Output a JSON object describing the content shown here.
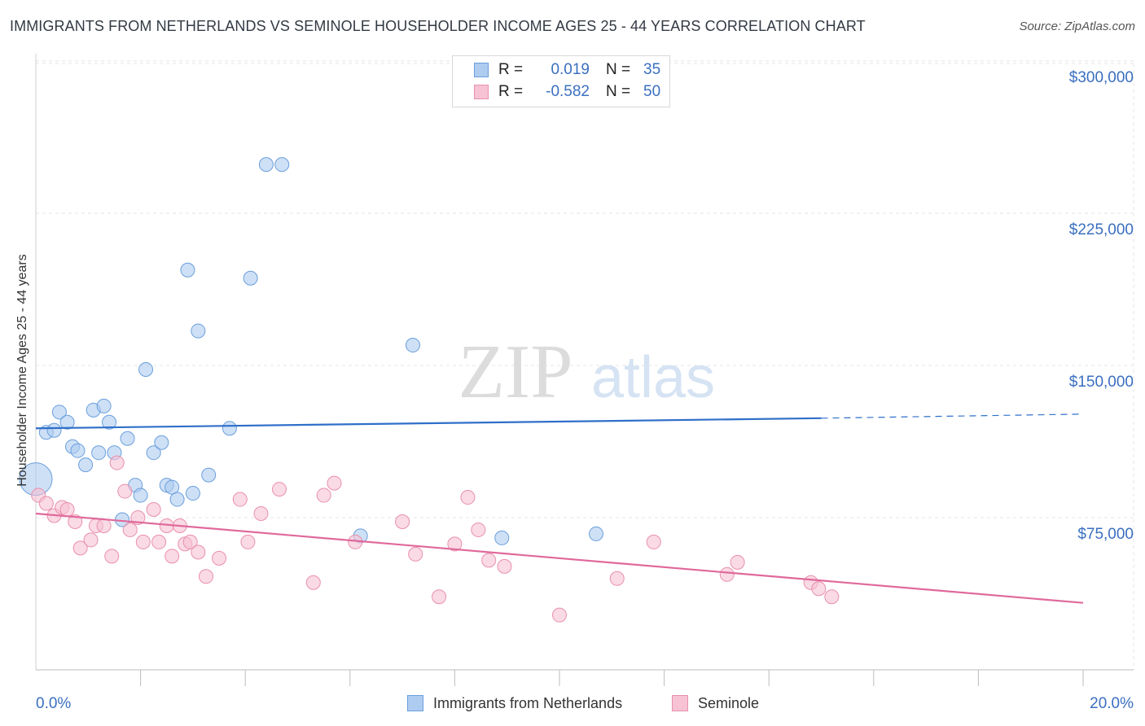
{
  "title": "IMMIGRANTS FROM NETHERLANDS VS SEMINOLE HOUSEHOLDER INCOME AGES 25 - 44 YEARS CORRELATION CHART",
  "source": "Source: ZipAtlas.com",
  "watermark": {
    "zip": "ZIP",
    "atlas": "atlas"
  },
  "legend": {
    "r_label": "R =",
    "n_label": "N =",
    "series1": {
      "r": "0.019",
      "n": "35"
    },
    "series2": {
      "r": "-0.582",
      "n": "50"
    }
  },
  "chart_data": {
    "type": "scatter",
    "title": "IMMIGRANTS FROM NETHERLANDS VS SEMINOLE HOUSEHOLDER INCOME AGES 25 - 44 YEARS CORRELATION CHART",
    "xlabel": "",
    "ylabel": "Householder Income Ages 25 - 44 years",
    "xlim": [
      0,
      20
    ],
    "ylim": [
      0,
      310000
    ],
    "x_tick_labels": [
      "0.0%",
      "20.0%"
    ],
    "y_ticks": [
      75000,
      150000,
      225000,
      300000
    ],
    "y_tick_labels": [
      "$75,000",
      "$150,000",
      "$225,000",
      "$300,000"
    ],
    "grid": true,
    "colors": {
      "series1_fill": "#aecbf0",
      "series1_stroke": "#6a9fdc",
      "series1_line": "#2f6fc9",
      "series2_fill": "#f7c2d3",
      "series2_stroke": "#e890ad",
      "series2_line": "#e0699b",
      "tick_label": "#3a6fc0",
      "grid": "#e4e4e4"
    },
    "series": [
      {
        "name": "Immigrants from Netherlands",
        "r": 0.019,
        "n": 35,
        "trend": {
          "x0": 0,
          "y0": 119000,
          "x1": 15,
          "y1": 124000,
          "dash_to_x": 20,
          "dash_to_y": 126000
        },
        "points": [
          {
            "x": 0.0,
            "y": 94000,
            "big": true
          },
          {
            "x": 0.2,
            "y": 117000
          },
          {
            "x": 0.35,
            "y": 118000
          },
          {
            "x": 0.45,
            "y": 127000
          },
          {
            "x": 0.6,
            "y": 122000
          },
          {
            "x": 0.7,
            "y": 110000
          },
          {
            "x": 0.8,
            "y": 108000
          },
          {
            "x": 0.95,
            "y": 101000
          },
          {
            "x": 1.1,
            "y": 128000
          },
          {
            "x": 1.2,
            "y": 107000
          },
          {
            "x": 1.3,
            "y": 130000
          },
          {
            "x": 1.4,
            "y": 122000
          },
          {
            "x": 1.5,
            "y": 107000
          },
          {
            "x": 1.65,
            "y": 74000
          },
          {
            "x": 1.75,
            "y": 114000
          },
          {
            "x": 1.9,
            "y": 91000
          },
          {
            "x": 2.0,
            "y": 86000
          },
          {
            "x": 2.1,
            "y": 148000
          },
          {
            "x": 2.25,
            "y": 107000
          },
          {
            "x": 2.4,
            "y": 112000
          },
          {
            "x": 2.5,
            "y": 91000
          },
          {
            "x": 2.6,
            "y": 90000
          },
          {
            "x": 2.7,
            "y": 84000
          },
          {
            "x": 2.9,
            "y": 197000
          },
          {
            "x": 3.0,
            "y": 87000
          },
          {
            "x": 3.1,
            "y": 167000
          },
          {
            "x": 3.3,
            "y": 96000
          },
          {
            "x": 3.7,
            "y": 119000
          },
          {
            "x": 4.1,
            "y": 193000
          },
          {
            "x": 4.4,
            "y": 249000
          },
          {
            "x": 4.7,
            "y": 249000
          },
          {
            "x": 6.2,
            "y": 66000
          },
          {
            "x": 7.2,
            "y": 160000
          },
          {
            "x": 8.9,
            "y": 65000
          },
          {
            "x": 10.7,
            "y": 67000
          }
        ]
      },
      {
        "name": "Seminole",
        "r": -0.582,
        "n": 50,
        "trend": {
          "x0": 0,
          "y0": 77000,
          "x1": 20,
          "y1": 33000
        },
        "points": [
          {
            "x": 0.05,
            "y": 86000
          },
          {
            "x": 0.2,
            "y": 82000
          },
          {
            "x": 0.35,
            "y": 76000
          },
          {
            "x": 0.5,
            "y": 80000
          },
          {
            "x": 0.6,
            "y": 79000
          },
          {
            "x": 0.75,
            "y": 73000
          },
          {
            "x": 0.85,
            "y": 60000
          },
          {
            "x": 1.05,
            "y": 64000
          },
          {
            "x": 1.15,
            "y": 71000
          },
          {
            "x": 1.3,
            "y": 71000
          },
          {
            "x": 1.45,
            "y": 56000
          },
          {
            "x": 1.55,
            "y": 102000
          },
          {
            "x": 1.7,
            "y": 88000
          },
          {
            "x": 1.8,
            "y": 69000
          },
          {
            "x": 1.95,
            "y": 75000
          },
          {
            "x": 2.05,
            "y": 63000
          },
          {
            "x": 2.25,
            "y": 79000
          },
          {
            "x": 2.35,
            "y": 63000
          },
          {
            "x": 2.5,
            "y": 71000
          },
          {
            "x": 2.6,
            "y": 56000
          },
          {
            "x": 2.75,
            "y": 71000
          },
          {
            "x": 2.85,
            "y": 62000
          },
          {
            "x": 2.95,
            "y": 63000
          },
          {
            "x": 3.1,
            "y": 58000
          },
          {
            "x": 3.25,
            "y": 46000
          },
          {
            "x": 3.5,
            "y": 55000
          },
          {
            "x": 3.9,
            "y": 84000
          },
          {
            "x": 4.05,
            "y": 63000
          },
          {
            "x": 4.3,
            "y": 77000
          },
          {
            "x": 4.65,
            "y": 89000
          },
          {
            "x": 5.3,
            "y": 43000
          },
          {
            "x": 5.5,
            "y": 86000
          },
          {
            "x": 5.7,
            "y": 92000
          },
          {
            "x": 6.1,
            "y": 63000
          },
          {
            "x": 7.0,
            "y": 73000
          },
          {
            "x": 7.25,
            "y": 57000
          },
          {
            "x": 7.7,
            "y": 36000
          },
          {
            "x": 8.0,
            "y": 62000
          },
          {
            "x": 8.25,
            "y": 85000
          },
          {
            "x": 8.45,
            "y": 69000
          },
          {
            "x": 8.65,
            "y": 54000
          },
          {
            "x": 8.95,
            "y": 51000
          },
          {
            "x": 10.0,
            "y": 27000
          },
          {
            "x": 11.1,
            "y": 45000
          },
          {
            "x": 11.8,
            "y": 63000
          },
          {
            "x": 13.2,
            "y": 47000
          },
          {
            "x": 13.4,
            "y": 53000
          },
          {
            "x": 14.8,
            "y": 43000
          },
          {
            "x": 14.95,
            "y": 40000
          },
          {
            "x": 15.2,
            "y": 36000
          }
        ]
      }
    ]
  }
}
